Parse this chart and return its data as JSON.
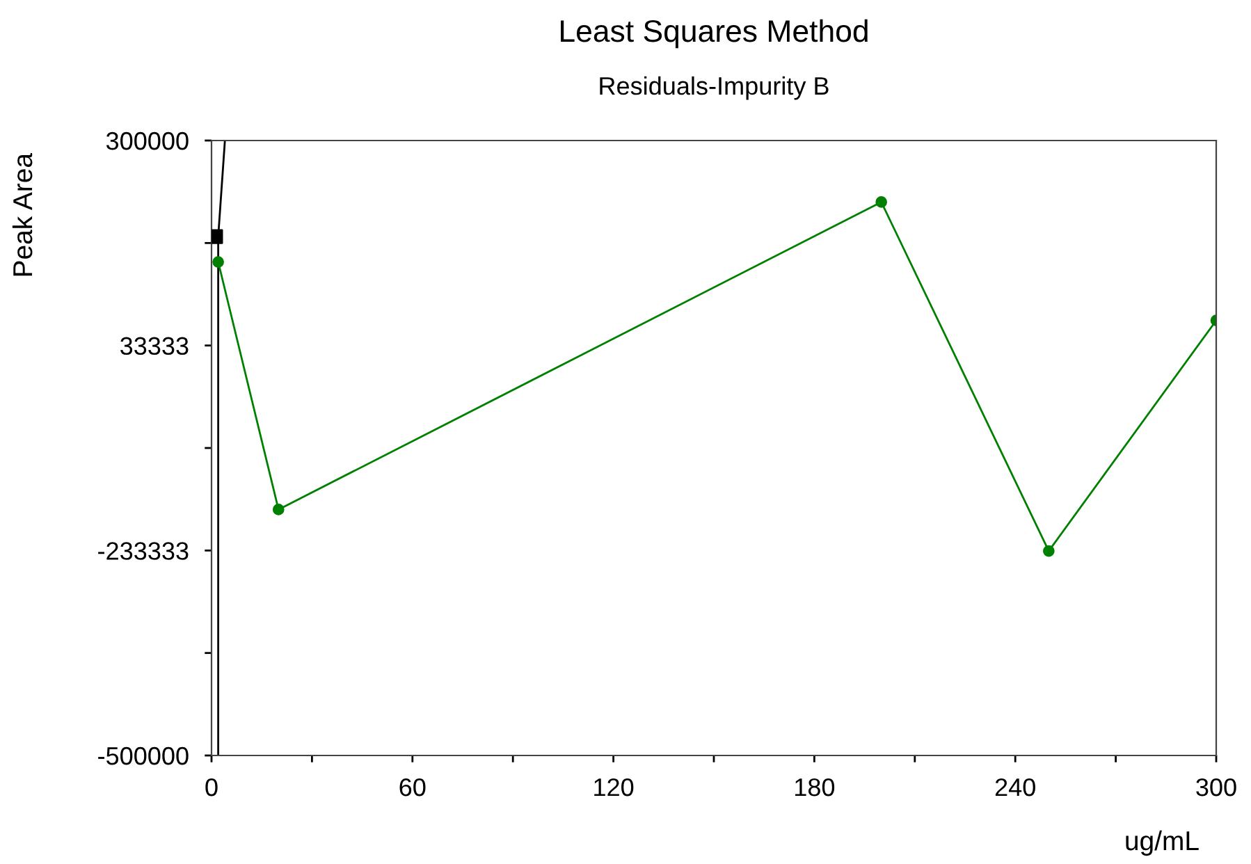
{
  "chart_data": {
    "type": "line",
    "title": "Least Squares Method",
    "subtitle": "Residuals-Impurity B",
    "xlabel": "ug/mL",
    "ylabel": "Peak Area",
    "xlim": [
      0,
      300
    ],
    "ylim": [
      -500000,
      300000
    ],
    "xticks": [
      0,
      {
        "value": 30,
        "label": null
      },
      60,
      {
        "value": 90,
        "label": null
      },
      120,
      {
        "value": 150,
        "label": null
      },
      180,
      {
        "value": 210,
        "label": null
      },
      240,
      {
        "value": 270,
        "label": null
      },
      300
    ],
    "yticks": [
      -500000,
      {
        "value": -366667,
        "label": null
      },
      -233333,
      {
        "value": -100000,
        "label": null
      },
      33333,
      {
        "value": 166667,
        "label": null
      },
      300000
    ],
    "grid": false,
    "legend": false,
    "series": [
      {
        "type": "line",
        "color": "#000000",
        "marker": "none",
        "x": [
          2,
          2,
          4
        ],
        "values": [
          -500000,
          175000,
          300000
        ]
      },
      {
        "type": "scatter",
        "color": "#000000",
        "marker": "square",
        "x": [
          1.2
        ],
        "values": [
          175000
        ]
      },
      {
        "color": "#008000",
        "marker": "circle",
        "x": [
          2,
          20,
          200,
          250,
          300
        ],
        "values": [
          142000,
          -180000,
          220000,
          -234000,
          66000
        ]
      }
    ]
  }
}
